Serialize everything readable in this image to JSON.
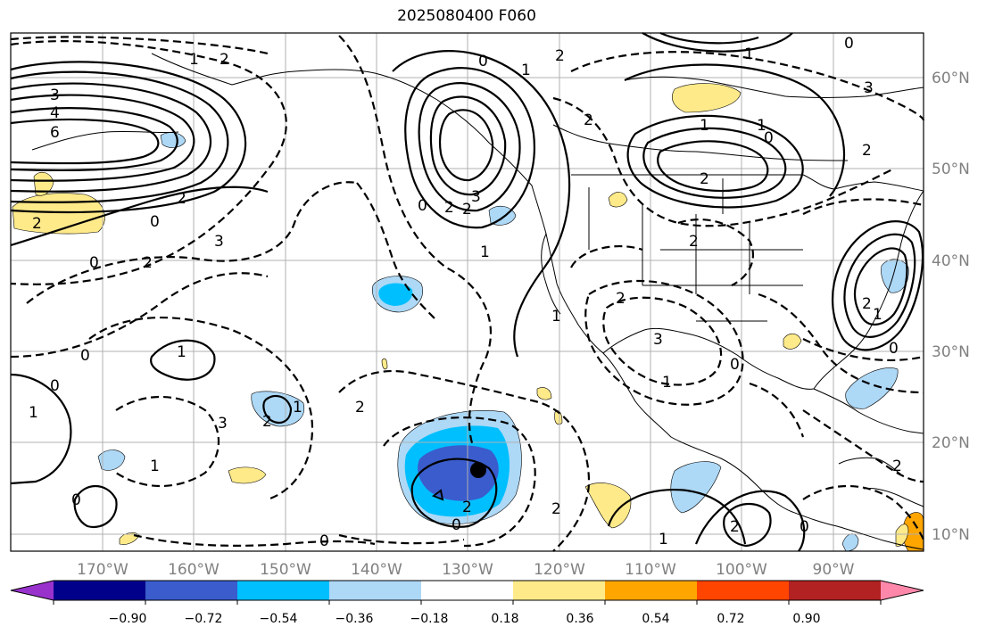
{
  "title": "2025080400 F060",
  "lon_labels": [
    "170°W",
    "160°W",
    "150°W",
    "140°W",
    "130°W",
    "120°W",
    "110°W",
    "100°W",
    "90°W"
  ],
  "lat_labels": [
    "60°N",
    "50°N",
    "40°N",
    "30°N",
    "20°N",
    "10°N"
  ],
  "colorbar": {
    "ticks": [
      "−0.90",
      "−0.72",
      "−0.54",
      "−0.36",
      "−0.18",
      "0.18",
      "0.36",
      "0.54",
      "0.72",
      "0.90"
    ],
    "colors": [
      "#9932cc",
      "#00008b",
      "#3a5ccc",
      "#00bfff",
      "#add8f6",
      "#ffffff",
      "#ffea8a",
      "#ffa500",
      "#ff4500",
      "#b22222",
      "#ff88aa"
    ]
  },
  "contour_labels": [
    "3",
    "4",
    "6",
    "2",
    "0",
    "2",
    "0",
    "2",
    "3",
    "2",
    "1",
    "0",
    "1",
    "2",
    "3",
    "2",
    "2",
    "1",
    "2",
    "0",
    "1",
    "2",
    "3",
    "2",
    "0",
    "0",
    "1",
    "1",
    "2",
    "1",
    "0",
    "2",
    "1",
    "2",
    "3",
    "1",
    "2",
    "0",
    "0",
    "1",
    "2",
    "1",
    "0",
    "3",
    "2",
    "1",
    "0",
    "0",
    "1",
    "2",
    "1",
    "0",
    "2",
    "2",
    "0"
  ],
  "storm_marker": "filled-circle"
}
